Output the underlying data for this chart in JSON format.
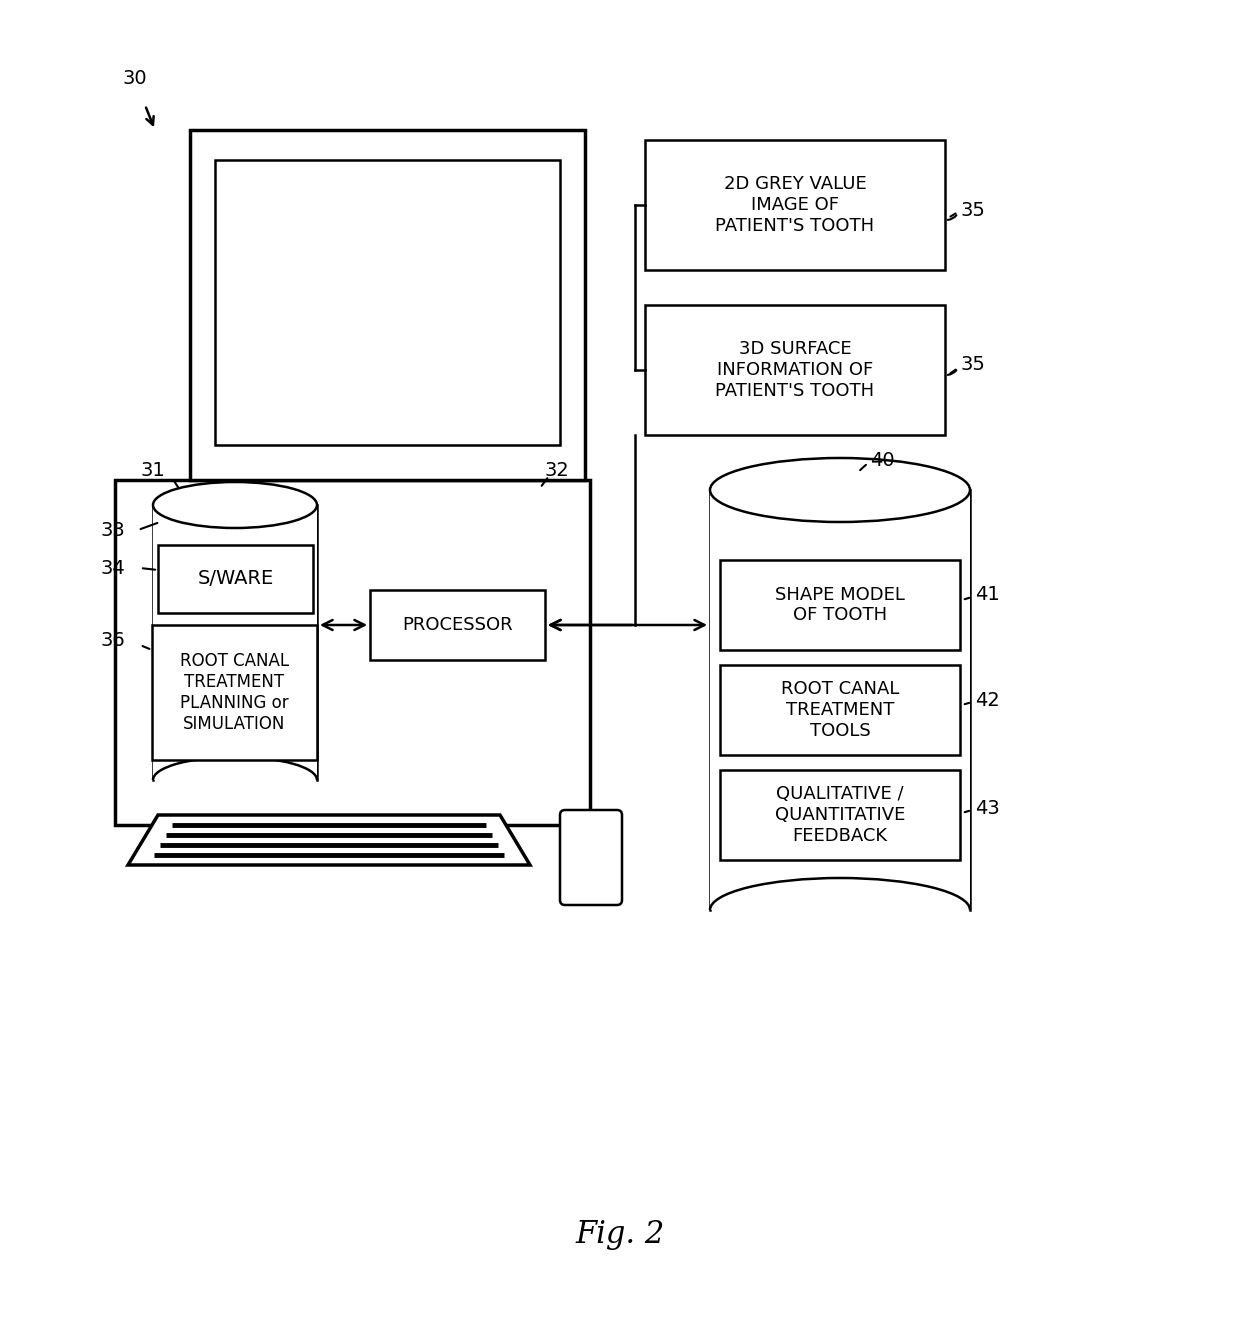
{
  "background_color": "#ffffff",
  "line_color": "#000000",
  "lw_thick": 2.5,
  "lw_thin": 1.8,
  "fig_caption": "Fig. 2",
  "box_labels": {
    "2d_grey": "2D GREY VALUE\nIMAGE OF\nPATIENT'S TOOTH",
    "3d_surface": "3D SURFACE\nINFORMATION OF\nPATIENT'S TOOTH",
    "processor": "PROCESSOR",
    "sware": "S/WARE",
    "root_canal_planning": "ROOT CANAL\nTREATMENT\nPLANNING or\nSIMULATION",
    "shape_model": "SHAPE MODEL\nOF TOOTH",
    "root_canal_tools": "ROOT CANAL\nTREATMENT\nTOOLS",
    "qualitative": "QUALITATIVE /\nQUANTITATIVE\nFEEDBACK"
  },
  "font_size_label": 14,
  "font_size_box": 12,
  "font_size_caption": 22
}
